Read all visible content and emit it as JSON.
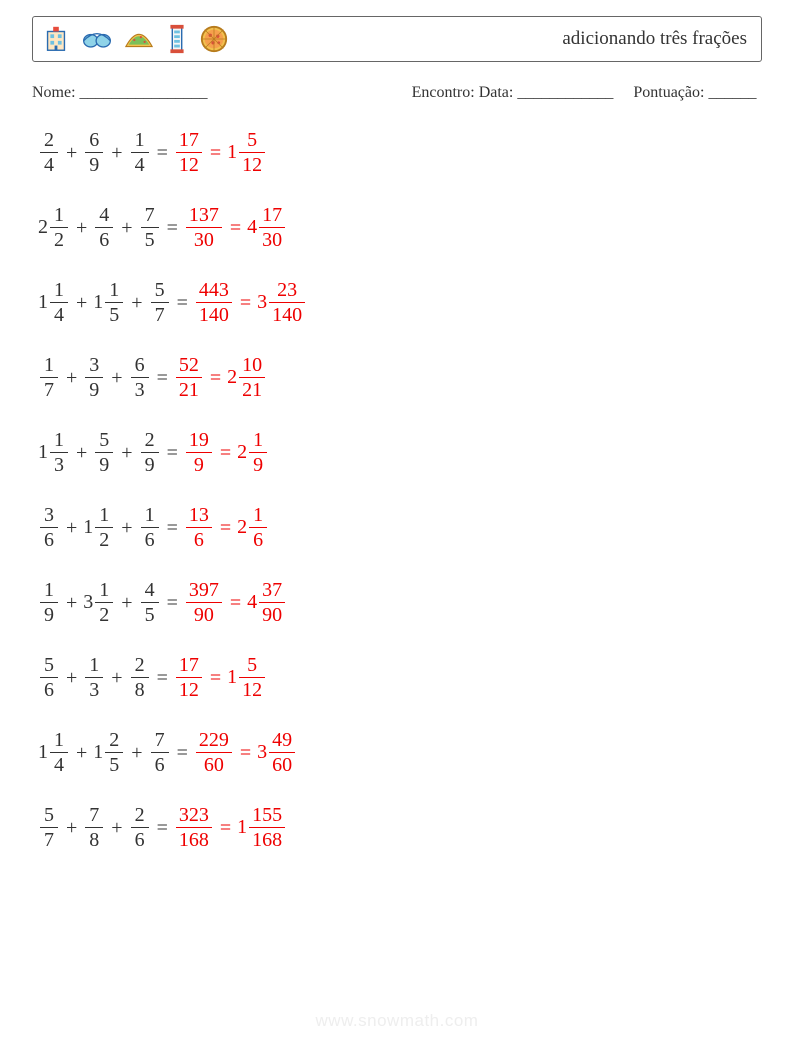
{
  "colors": {
    "text": "#333333",
    "answer": "#ee0000",
    "border": "#666666",
    "watermark": "#eeeeee",
    "background": "#ffffff"
  },
  "typography": {
    "body_family": "Times New Roman, serif",
    "body_size_pt": 15,
    "title_size_pt": 14,
    "meta_size_pt": 12
  },
  "header": {
    "title": "adicionando três frações",
    "icons": [
      "building-icon",
      "goggles-icon",
      "taco-icon",
      "tower-icon",
      "pizza-icon"
    ]
  },
  "meta": {
    "name_label": "Nome: ________________",
    "date_label": "Encontro: Data: ____________",
    "score_label": "Pontuação: ______"
  },
  "problems": [
    {
      "terms": [
        {
          "whole": null,
          "num": "2",
          "den": "4"
        },
        {
          "whole": null,
          "num": "6",
          "den": "9"
        },
        {
          "whole": null,
          "num": "1",
          "den": "4"
        }
      ],
      "answer_improper": {
        "num": "17",
        "den": "12"
      },
      "answer_mixed": {
        "whole": "1",
        "num": "5",
        "den": "12"
      }
    },
    {
      "terms": [
        {
          "whole": "2",
          "num": "1",
          "den": "2"
        },
        {
          "whole": null,
          "num": "4",
          "den": "6"
        },
        {
          "whole": null,
          "num": "7",
          "den": "5"
        }
      ],
      "answer_improper": {
        "num": "137",
        "den": "30"
      },
      "answer_mixed": {
        "whole": "4",
        "num": "17",
        "den": "30"
      }
    },
    {
      "terms": [
        {
          "whole": "1",
          "num": "1",
          "den": "4"
        },
        {
          "whole": "1",
          "num": "1",
          "den": "5"
        },
        {
          "whole": null,
          "num": "5",
          "den": "7"
        }
      ],
      "answer_improper": {
        "num": "443",
        "den": "140"
      },
      "answer_mixed": {
        "whole": "3",
        "num": "23",
        "den": "140"
      }
    },
    {
      "terms": [
        {
          "whole": null,
          "num": "1",
          "den": "7"
        },
        {
          "whole": null,
          "num": "3",
          "den": "9"
        },
        {
          "whole": null,
          "num": "6",
          "den": "3"
        }
      ],
      "answer_improper": {
        "num": "52",
        "den": "21"
      },
      "answer_mixed": {
        "whole": "2",
        "num": "10",
        "den": "21"
      }
    },
    {
      "terms": [
        {
          "whole": "1",
          "num": "1",
          "den": "3"
        },
        {
          "whole": null,
          "num": "5",
          "den": "9"
        },
        {
          "whole": null,
          "num": "2",
          "den": "9"
        }
      ],
      "answer_improper": {
        "num": "19",
        "den": "9"
      },
      "answer_mixed": {
        "whole": "2",
        "num": "1",
        "den": "9"
      }
    },
    {
      "terms": [
        {
          "whole": null,
          "num": "3",
          "den": "6"
        },
        {
          "whole": "1",
          "num": "1",
          "den": "2"
        },
        {
          "whole": null,
          "num": "1",
          "den": "6"
        }
      ],
      "answer_improper": {
        "num": "13",
        "den": "6"
      },
      "answer_mixed": {
        "whole": "2",
        "num": "1",
        "den": "6"
      }
    },
    {
      "terms": [
        {
          "whole": null,
          "num": "1",
          "den": "9"
        },
        {
          "whole": "3",
          "num": "1",
          "den": "2"
        },
        {
          "whole": null,
          "num": "4",
          "den": "5"
        }
      ],
      "answer_improper": {
        "num": "397",
        "den": "90"
      },
      "answer_mixed": {
        "whole": "4",
        "num": "37",
        "den": "90"
      }
    },
    {
      "terms": [
        {
          "whole": null,
          "num": "5",
          "den": "6"
        },
        {
          "whole": null,
          "num": "1",
          "den": "3"
        },
        {
          "whole": null,
          "num": "2",
          "den": "8"
        }
      ],
      "answer_improper": {
        "num": "17",
        "den": "12"
      },
      "answer_mixed": {
        "whole": "1",
        "num": "5",
        "den": "12"
      }
    },
    {
      "terms": [
        {
          "whole": "1",
          "num": "1",
          "den": "4"
        },
        {
          "whole": "1",
          "num": "2",
          "den": "5"
        },
        {
          "whole": null,
          "num": "7",
          "den": "6"
        }
      ],
      "answer_improper": {
        "num": "229",
        "den": "60"
      },
      "answer_mixed": {
        "whole": "3",
        "num": "49",
        "den": "60"
      }
    },
    {
      "terms": [
        {
          "whole": null,
          "num": "5",
          "den": "7"
        },
        {
          "whole": null,
          "num": "7",
          "den": "8"
        },
        {
          "whole": null,
          "num": "2",
          "den": "6"
        }
      ],
      "answer_improper": {
        "num": "323",
        "den": "168"
      },
      "answer_mixed": {
        "whole": "1",
        "num": "155",
        "den": "168"
      }
    }
  ],
  "watermark": "www.snowmath.com"
}
